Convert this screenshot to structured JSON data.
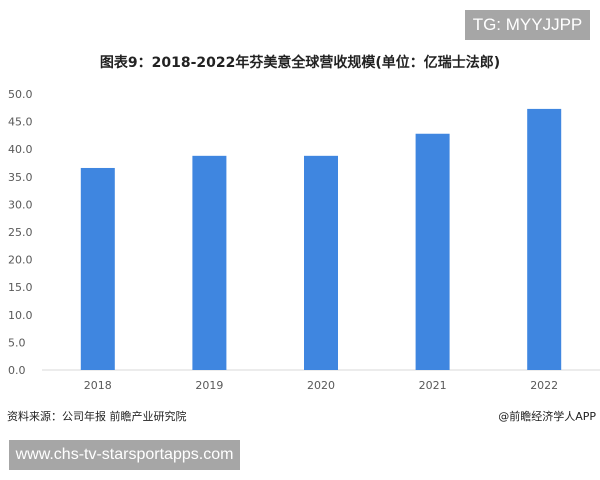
{
  "tag": "TG: MYYJJPP",
  "source": "资料来源：公司年报 前瞻产业研究院",
  "credit": "@前瞻经济学人APP",
  "url": "www.chs-tv-starsportapps.com",
  "colors": {
    "bar": "#3f86e0",
    "axis": "#d9d9d9",
    "tick_text": "#595959"
  },
  "chart_data": {
    "type": "bar",
    "title": "图表9：2018-2022年芬美意全球营收规模(单位：亿瑞士法郎)",
    "categories": [
      "2018",
      "2019",
      "2020",
      "2021",
      "2022"
    ],
    "values": [
      36.6,
      38.8,
      38.8,
      42.8,
      47.3
    ],
    "xlabel": "",
    "ylabel": "",
    "ylim": [
      0,
      50
    ],
    "yticks": [
      "0.0",
      "5.0",
      "10.0",
      "15.0",
      "20.0",
      "25.0",
      "30.0",
      "35.0",
      "40.0",
      "45.0",
      "50.0"
    ],
    "grid": false,
    "legend": "none"
  }
}
